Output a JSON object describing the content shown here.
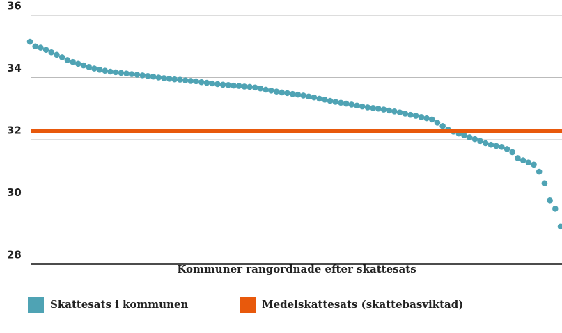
{
  "chart_data": {
    "type": "scatter",
    "x_label": "Kommuner rangordnade efter skattesats",
    "ylim": [
      28,
      36
    ],
    "yticks": [
      28,
      30,
      32,
      34,
      36
    ],
    "grid": true,
    "series": [
      {
        "name": "Skattesats i kommunen",
        "color": "#4fa3b4",
        "values": [
          35.15,
          35.0,
          34.96,
          34.89,
          34.81,
          34.73,
          34.65,
          34.56,
          34.5,
          34.44,
          34.39,
          34.34,
          34.29,
          34.25,
          34.22,
          34.19,
          34.17,
          34.15,
          34.13,
          34.11,
          34.09,
          34.07,
          34.05,
          34.03,
          34.0,
          33.98,
          33.96,
          33.94,
          33.93,
          33.91,
          33.89,
          33.88,
          33.85,
          33.83,
          33.81,
          33.79,
          33.77,
          33.76,
          33.74,
          33.73,
          33.71,
          33.7,
          33.68,
          33.65,
          33.61,
          33.58,
          33.55,
          33.52,
          33.5,
          33.47,
          33.45,
          33.42,
          33.39,
          33.36,
          33.32,
          33.29,
          33.25,
          33.22,
          33.19,
          33.16,
          33.13,
          33.1,
          33.07,
          33.04,
          33.02,
          33.0,
          32.97,
          32.94,
          32.91,
          32.88,
          32.84,
          32.8,
          32.77,
          32.73,
          32.69,
          32.65,
          32.55,
          32.44,
          32.33,
          32.26,
          32.2,
          32.14,
          32.08,
          32.02,
          31.96,
          31.89,
          31.84,
          31.8,
          31.77,
          31.7,
          31.6,
          31.41,
          31.34,
          31.27,
          31.2,
          30.97,
          30.6,
          30.05,
          29.78,
          29.21
        ]
      }
    ],
    "reference_lines": [
      {
        "name": "Medelskattesats (skattebasviktad)",
        "color": "#e8590c",
        "value": 32.28
      }
    ]
  }
}
